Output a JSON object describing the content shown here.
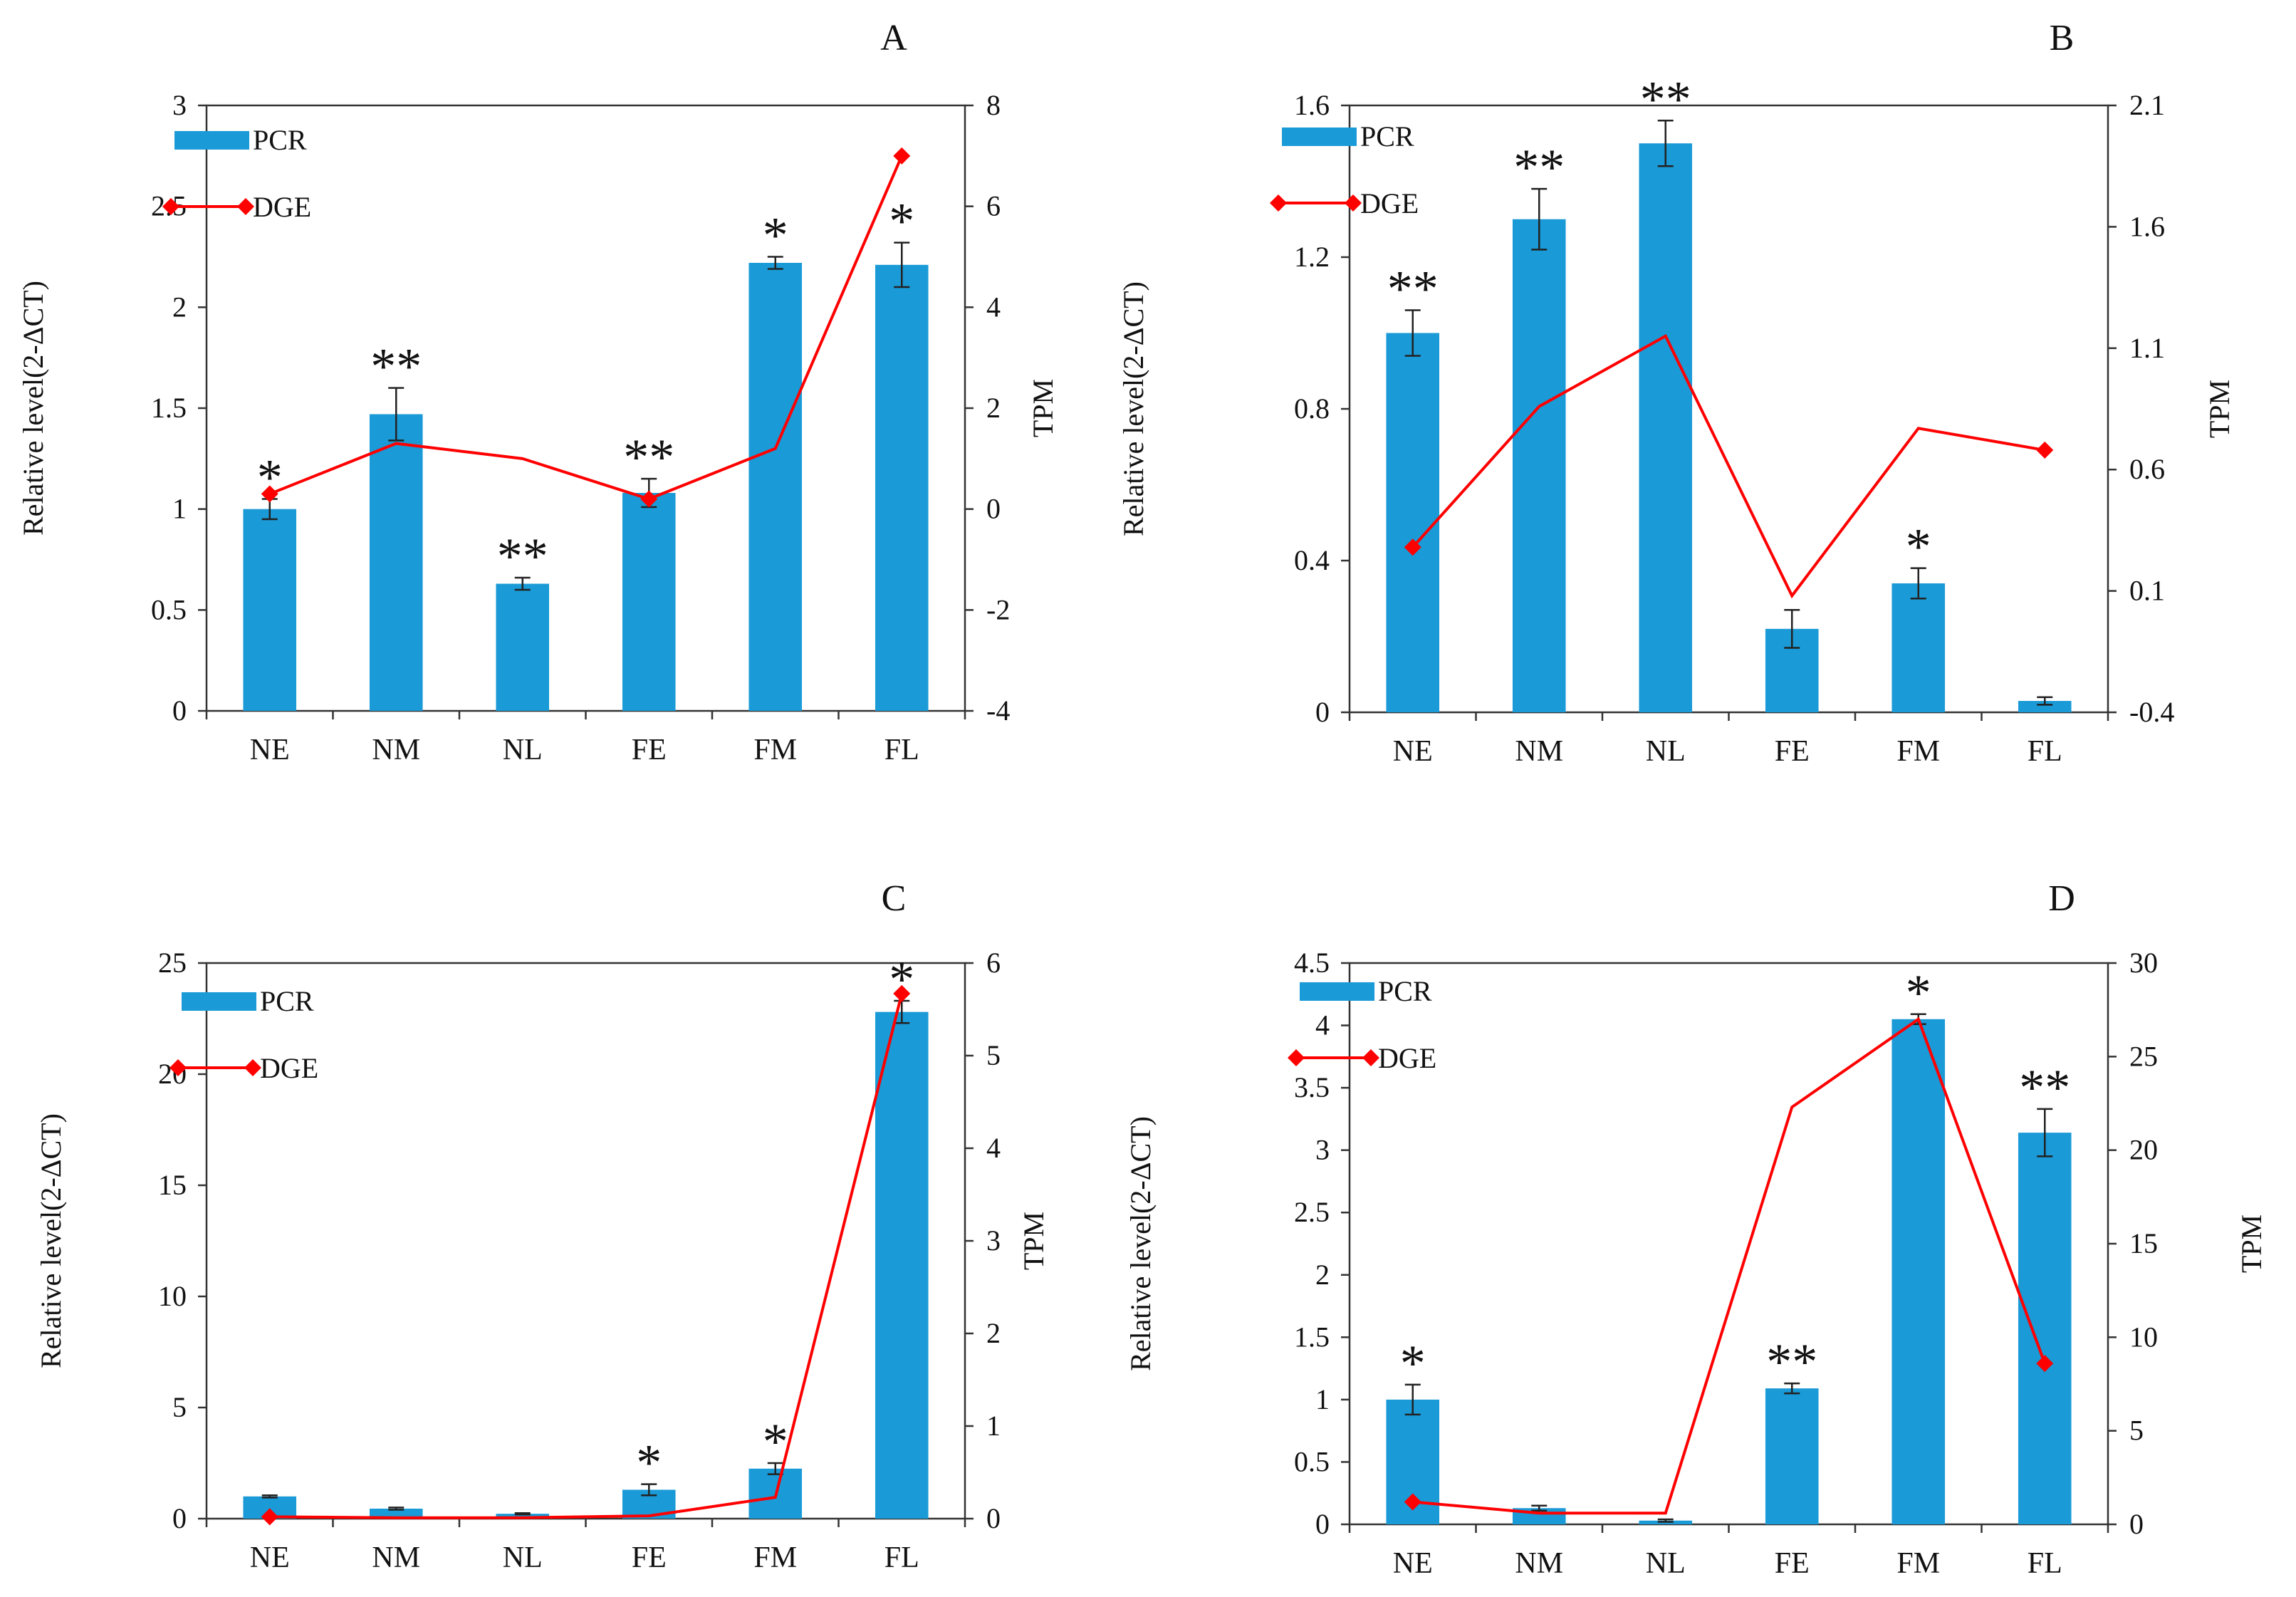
{
  "chart_data": [
    {
      "panel": "A",
      "type": "bar",
      "categories": [
        "NE",
        "NM",
        "NL",
        "FE",
        "FM",
        "FL"
      ],
      "series": [
        {
          "name": "PCR",
          "type": "bar",
          "axis": "left",
          "values": [
            1.0,
            1.47,
            0.63,
            1.08,
            2.22,
            2.21
          ],
          "errors": [
            0.05,
            0.13,
            0.03,
            0.07,
            0.03,
            0.11
          ]
        },
        {
          "name": "DGE",
          "type": "line",
          "axis": "right",
          "values": [
            0.3,
            1.3,
            1.0,
            0.2,
            1.2,
            7.0
          ],
          "markers": [
            true,
            false,
            false,
            true,
            false,
            true
          ]
        }
      ],
      "significance": [
        "*",
        "**",
        "**",
        "**",
        "*",
        "*"
      ],
      "ylabel": "Relative level(2-ΔCT)",
      "y2label": "TPM",
      "ylim": [
        0,
        3
      ],
      "yticks": [
        "0",
        "0.5",
        "1",
        "1.5",
        "2",
        "2.5",
        "3"
      ],
      "y2lim": [
        -4,
        8
      ],
      "y2ticks": [
        "-4",
        "-2",
        "0",
        "2",
        "4",
        "6",
        "8"
      ],
      "legend": [
        "PCR",
        "DGE"
      ]
    },
    {
      "panel": "B",
      "type": "bar",
      "categories": [
        "NE",
        "NM",
        "NL",
        "FE",
        "FM",
        "FL"
      ],
      "series": [
        {
          "name": "PCR",
          "type": "bar",
          "axis": "left",
          "values": [
            1.0,
            1.3,
            1.5,
            0.22,
            0.34,
            0.03
          ],
          "errors": [
            0.06,
            0.08,
            0.06,
            0.05,
            0.04,
            0.01
          ]
        },
        {
          "name": "DGE",
          "type": "line",
          "axis": "right",
          "values": [
            0.28,
            0.86,
            1.15,
            0.08,
            0.77,
            0.68
          ],
          "markers": [
            true,
            false,
            false,
            false,
            false,
            true
          ]
        }
      ],
      "significance": [
        "**",
        "**",
        "**",
        "",
        "*",
        ""
      ],
      "ylabel": "Relative level(2-ΔCT)",
      "y2label": "TPM",
      "ylim": [
        0,
        1.6
      ],
      "yticks": [
        "0",
        "0.4",
        "0.8",
        "1.2",
        "1.6"
      ],
      "y2lim": [
        -0.4,
        2.1
      ],
      "y2ticks": [
        "-0.4",
        "0.1",
        "0.6",
        "1.1",
        "1.6",
        "2.1"
      ],
      "legend": [
        "PCR",
        "DGE"
      ]
    },
    {
      "panel": "C",
      "type": "bar",
      "categories": [
        "NE",
        "NM",
        "NL",
        "FE",
        "FM",
        "FL"
      ],
      "series": [
        {
          "name": "PCR",
          "type": "bar",
          "axis": "left",
          "values": [
            1.0,
            0.45,
            0.22,
            1.3,
            2.25,
            22.8
          ],
          "errors": [
            0.05,
            0.05,
            0.03,
            0.25,
            0.25,
            0.5
          ]
        },
        {
          "name": "DGE",
          "type": "line",
          "axis": "right",
          "values": [
            0.02,
            0.01,
            0.01,
            0.03,
            0.23,
            5.67
          ],
          "markers": [
            true,
            false,
            false,
            false,
            false,
            true
          ]
        }
      ],
      "significance": [
        "",
        "",
        "",
        "*",
        "*",
        "*"
      ],
      "ylabel": "Relative level(2-ΔCT)",
      "y2label": "TPM",
      "ylim": [
        0,
        25
      ],
      "yticks": [
        "0",
        "5",
        "10",
        "15",
        "20",
        "25"
      ],
      "y2lim": [
        0,
        6
      ],
      "y2ticks": [
        "0",
        "1",
        "2",
        "3",
        "4",
        "5",
        "6"
      ],
      "legend": [
        "PCR",
        "DGE"
      ]
    },
    {
      "panel": "D",
      "type": "bar",
      "categories": [
        "NE",
        "NM",
        "NL",
        "FE",
        "FM",
        "FL"
      ],
      "series": [
        {
          "name": "PCR",
          "type": "bar",
          "axis": "left",
          "values": [
            1.0,
            0.13,
            0.03,
            1.09,
            4.05,
            3.14
          ],
          "errors": [
            0.12,
            0.02,
            0.01,
            0.04,
            0.04,
            0.19
          ]
        },
        {
          "name": "DGE",
          "type": "line",
          "axis": "right",
          "values": [
            1.2,
            0.6,
            0.6,
            22.3,
            27.0,
            8.6
          ],
          "markers": [
            true,
            false,
            false,
            false,
            false,
            true
          ]
        }
      ],
      "significance": [
        "*",
        "",
        "",
        "**",
        "*",
        "**"
      ],
      "ylabel": "Relative level(2-ΔCT)",
      "y2label": "TPM",
      "ylim": [
        0,
        4.5
      ],
      "yticks": [
        "0",
        "0.5",
        "1",
        "1.5",
        "2",
        "2.5",
        "3",
        "3.5",
        "4",
        "4.5"
      ],
      "y2lim": [
        0,
        30
      ],
      "y2ticks": [
        "0",
        "5",
        "10",
        "15",
        "20",
        "25",
        "30"
      ],
      "legend": [
        "PCR",
        "DGE"
      ]
    }
  ],
  "colors": {
    "bar": "#1a9ad6",
    "line": "#ff0000",
    "axis": "#333333"
  }
}
